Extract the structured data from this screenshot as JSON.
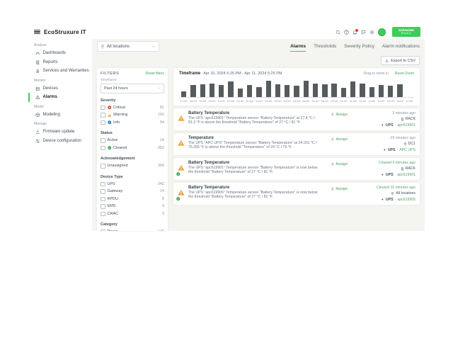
{
  "header": {
    "brand": "EcoStruxure IT",
    "logo_line1": "Schneider",
    "logo_line2": "Electric"
  },
  "location_bar": {
    "selected": "All locations"
  },
  "tabs": {
    "active": "Alarms",
    "items": [
      "Alarms",
      "Thresholds",
      "Severity Policy",
      "Alarm notifications"
    ]
  },
  "export_button": "Export to CSV",
  "sidebar": {
    "sections": [
      {
        "label": "Analyze",
        "items": [
          {
            "id": "dashboards",
            "icon": "gauge",
            "label": "Dashboards"
          },
          {
            "id": "reports",
            "icon": "report",
            "label": "Reports"
          },
          {
            "id": "services-and-warranties",
            "icon": "badge",
            "label": "Services and Warranties"
          }
        ]
      },
      {
        "label": "Monitor",
        "items": [
          {
            "id": "devices",
            "icon": "server",
            "label": "Devices"
          },
          {
            "id": "alarms",
            "icon": "alert-triangle",
            "label": "Alarms",
            "active": true
          }
        ]
      },
      {
        "label": "Model",
        "items": [
          {
            "id": "modeling",
            "icon": "cube",
            "label": "Modeling"
          }
        ]
      },
      {
        "label": "Manage",
        "items": [
          {
            "id": "firmware-update",
            "icon": "download",
            "label": "Firmware update"
          },
          {
            "id": "device-configuration",
            "icon": "sliders",
            "label": "Device configuration"
          }
        ]
      }
    ]
  },
  "filters": {
    "title": "FILTERS",
    "reset": "Reset filters",
    "timeframe_label": "Timeframe",
    "timeframe_value": "Past 24 hours",
    "groups": [
      {
        "label": "Severity",
        "options": [
          {
            "label": "Critical",
            "icon": "critical",
            "count": "81"
          },
          {
            "label": "Warning",
            "icon": "warning",
            "count": "191"
          },
          {
            "label": "Info",
            "icon": "info",
            "count": "94"
          }
        ]
      },
      {
        "label": "Status",
        "options": [
          {
            "label": "Active",
            "count": "14"
          },
          {
            "label": "Cleared",
            "icon": "cleared",
            "count": "352"
          }
        ]
      },
      {
        "label": "Acknowledgement",
        "options": [
          {
            "label": "Unassigned",
            "count": "366"
          }
        ]
      },
      {
        "label": "Device Type",
        "options": [
          {
            "label": "UPS",
            "count": "342"
          },
          {
            "label": "Gateway",
            "count": "14"
          },
          {
            "label": "RPDU",
            "count": "5"
          },
          {
            "label": "EMS",
            "count": "4"
          },
          {
            "label": "CRAC",
            "count": "3"
          }
        ]
      },
      {
        "label": "Category",
        "options": [
          {
            "label": "Power",
            "count": "146"
          }
        ]
      }
    ]
  },
  "chart_data": {
    "type": "bar",
    "title": "Timeframe",
    "date_range": "Apr 10, 2024 5:25 PM  -  Apr 11, 2024 5:25 PM",
    "drag_hint": "Drag to zoom in",
    "reset_zoom": "Reset Zoom",
    "categories": [
      "17:00",
      "18:00",
      "19:00",
      "20:00",
      "21:00",
      "22:00",
      "23:00",
      "11 Apr",
      "01:00",
      "02:00",
      "03:00",
      "04:00",
      "05:00",
      "06:00",
      "07:00",
      "08:00",
      "09:00",
      "10:00",
      "11:00",
      "12:00",
      "13:00",
      "14:00",
      "15:00",
      "16:00",
      "17:00"
    ],
    "values": [
      7,
      14,
      15,
      16,
      14,
      18,
      10,
      14,
      12,
      19,
      15,
      14,
      13,
      19,
      16,
      15,
      16,
      11,
      18,
      16,
      12,
      14,
      13,
      15,
      0
    ],
    "ylim": [
      0,
      20
    ],
    "xlabel": "",
    "ylabel": "",
    "y_axis_labels_visible": false,
    "grid": false,
    "bar_color": "#565b5e"
  },
  "alarms": [
    {
      "severity": "warning",
      "title": "Battery Temperature",
      "description": "The UPS \"apc619901\" Temperature sensor \"Battery Temperature\" at 27.4 °C / 81.3 °F is above the threshold \"Battery Temperature\" of 27 °C / 81 °F.",
      "assign_label": "Assign",
      "time": "3 minutes ago",
      "cleared": false,
      "location": "RACK",
      "location_icon": "rack",
      "device_type": "UPS",
      "device_name": "apc619901"
    },
    {
      "severity": "warning",
      "title": "Temperature",
      "description": "The UPS \"APC UPS\" Temperature sensor \"Battery Temperature\" at 24.031 °C / 75.256 °F is above the threshold \"Temperature\" of 24 °C / 75 °F.",
      "assign_label": "Assign",
      "time": "28 minutes ago",
      "cleared": false,
      "location": "DC1",
      "location_icon": "pin",
      "device_type": "UPS",
      "device_name": "APC UPS"
    },
    {
      "severity": "cleared",
      "title": "Battery Temperature",
      "description": "The UPS \"apc619901\" Temperature sensor \"Battery Temperature\" is now below the threshold \"Battery Temperature\" of 27 °C / 81 °F.",
      "assign_label": "Assign",
      "time": "Cleared 9 minutes ago",
      "cleared": true,
      "location": "RACK",
      "location_icon": "rack",
      "device_type": "UPS",
      "device_name": "apc619901"
    },
    {
      "severity": "cleared",
      "title": "Battery Temperature",
      "description": "The UPS \"apc619905\" Temperature sensor \"Battery Temperature\" is now below the threshold \"Battery Temperature\" of 27 °C / 81 °F.",
      "assign_label": "Assign",
      "time": "Cleared 10 minutes ago",
      "cleared": true,
      "location": "All locations",
      "location_icon": "pin",
      "device_type": "UPS",
      "device_name": "apc619905"
    }
  ]
}
